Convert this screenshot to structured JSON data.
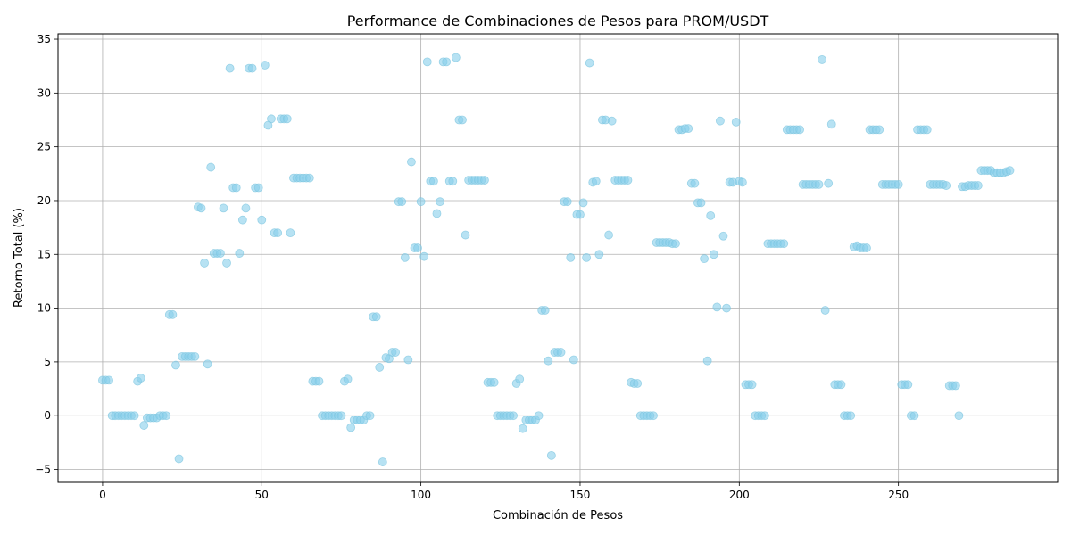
{
  "chart_data": {
    "type": "scatter",
    "title": "Performance de Combinaciones de Pesos para PROM/USDT",
    "xlabel": "Combinación de Pesos",
    "ylabel": "Retorno Total (%)",
    "xlim": [
      -14,
      300
    ],
    "ylim": [
      -6.2,
      35.5
    ],
    "xticks": [
      0,
      50,
      100,
      150,
      200,
      250
    ],
    "yticks": [
      -5,
      0,
      5,
      10,
      15,
      20,
      25,
      30,
      35
    ],
    "grid": true,
    "marker_color": "#87ceeb",
    "marker_edge": "#7fc6e0",
    "series": [
      {
        "points": [
          [
            0,
            3.3
          ],
          [
            1,
            3.3
          ],
          [
            2,
            3.3
          ],
          [
            3,
            0
          ],
          [
            4,
            0
          ],
          [
            5,
            0
          ],
          [
            6,
            0
          ],
          [
            7,
            0
          ],
          [
            8,
            0
          ],
          [
            9,
            0
          ],
          [
            10,
            0
          ],
          [
            11,
            3.2
          ],
          [
            12,
            3.5
          ],
          [
            13,
            -0.9
          ],
          [
            14,
            -0.2
          ],
          [
            15,
            -0.2
          ],
          [
            16,
            -0.2
          ],
          [
            17,
            -0.2
          ],
          [
            18,
            0
          ],
          [
            19,
            0
          ],
          [
            20,
            0
          ],
          [
            21,
            9.4
          ],
          [
            22,
            9.4
          ],
          [
            23,
            4.7
          ],
          [
            24,
            -4.0
          ],
          [
            25,
            5.5
          ],
          [
            26,
            5.5
          ],
          [
            27,
            5.5
          ],
          [
            28,
            5.5
          ],
          [
            29,
            5.5
          ],
          [
            30,
            19.4
          ],
          [
            31,
            19.3
          ],
          [
            32,
            14.2
          ],
          [
            33,
            4.8
          ],
          [
            34,
            23.1
          ],
          [
            35,
            15.1
          ],
          [
            36,
            15.1
          ],
          [
            37,
            15.1
          ],
          [
            38,
            19.3
          ],
          [
            39,
            14.2
          ],
          [
            40,
            32.3
          ],
          [
            41,
            21.2
          ],
          [
            42,
            21.2
          ],
          [
            43,
            15.1
          ],
          [
            44,
            18.2
          ],
          [
            45,
            19.3
          ],
          [
            46,
            32.3
          ],
          [
            47,
            32.3
          ],
          [
            48,
            21.2
          ],
          [
            49,
            21.2
          ],
          [
            50,
            18.2
          ],
          [
            51,
            32.6
          ],
          [
            52,
            27.0
          ],
          [
            53,
            27.6
          ],
          [
            54,
            17.0
          ],
          [
            55,
            17.0
          ],
          [
            56,
            27.6
          ],
          [
            57,
            27.6
          ],
          [
            58,
            27.6
          ],
          [
            59,
            17.0
          ],
          [
            60,
            22.1
          ],
          [
            61,
            22.1
          ],
          [
            62,
            22.1
          ],
          [
            63,
            22.1
          ],
          [
            64,
            22.1
          ],
          [
            65,
            22.1
          ],
          [
            66,
            3.2
          ],
          [
            67,
            3.2
          ],
          [
            68,
            3.2
          ],
          [
            69,
            0
          ],
          [
            70,
            0
          ],
          [
            71,
            0
          ],
          [
            72,
            0
          ],
          [
            73,
            0
          ],
          [
            74,
            0
          ],
          [
            75,
            0
          ],
          [
            76,
            3.2
          ],
          [
            77,
            3.4
          ],
          [
            78,
            -1.1
          ],
          [
            79,
            -0.4
          ],
          [
            80,
            -0.4
          ],
          [
            81,
            -0.4
          ],
          [
            82,
            -0.4
          ],
          [
            83,
            0
          ],
          [
            84,
            0
          ],
          [
            85,
            9.2
          ],
          [
            86,
            9.2
          ],
          [
            87,
            4.5
          ],
          [
            88,
            -4.3
          ],
          [
            89,
            5.4
          ],
          [
            90,
            5.3
          ],
          [
            91,
            5.9
          ],
          [
            92,
            5.9
          ],
          [
            93,
            19.9
          ],
          [
            94,
            19.9
          ],
          [
            95,
            14.7
          ],
          [
            96,
            5.2
          ],
          [
            97,
            23.6
          ],
          [
            98,
            15.6
          ],
          [
            99,
            15.6
          ],
          [
            100,
            19.9
          ],
          [
            101,
            14.8
          ],
          [
            102,
            32.9
          ],
          [
            103,
            21.8
          ],
          [
            104,
            21.8
          ],
          [
            105,
            18.8
          ],
          [
            106,
            19.9
          ],
          [
            107,
            32.9
          ],
          [
            108,
            32.9
          ],
          [
            109,
            21.8
          ],
          [
            110,
            21.8
          ],
          [
            111,
            33.3
          ],
          [
            112,
            27.5
          ],
          [
            113,
            27.5
          ],
          [
            114,
            16.8
          ],
          [
            115,
            21.9
          ],
          [
            116,
            21.9
          ],
          [
            117,
            21.9
          ],
          [
            118,
            21.9
          ],
          [
            119,
            21.9
          ],
          [
            120,
            21.9
          ],
          [
            121,
            3.1
          ],
          [
            122,
            3.1
          ],
          [
            123,
            3.1
          ],
          [
            124,
            0
          ],
          [
            125,
            0
          ],
          [
            126,
            0
          ],
          [
            127,
            0
          ],
          [
            128,
            0
          ],
          [
            129,
            0
          ],
          [
            130,
            3.0
          ],
          [
            131,
            3.4
          ],
          [
            132,
            -1.2
          ],
          [
            133,
            -0.4
          ],
          [
            134,
            -0.4
          ],
          [
            135,
            -0.4
          ],
          [
            136,
            -0.4
          ],
          [
            137,
            0
          ],
          [
            138,
            9.8
          ],
          [
            139,
            9.8
          ],
          [
            140,
            5.1
          ],
          [
            141,
            -3.7
          ],
          [
            142,
            5.9
          ],
          [
            143,
            5.9
          ],
          [
            144,
            5.9
          ],
          [
            145,
            19.9
          ],
          [
            146,
            19.9
          ],
          [
            147,
            14.7
          ],
          [
            148,
            5.2
          ],
          [
            149,
            18.7
          ],
          [
            150,
            18.7
          ],
          [
            151,
            19.8
          ],
          [
            152,
            14.7
          ],
          [
            153,
            32.8
          ],
          [
            154,
            21.7
          ],
          [
            155,
            21.8
          ],
          [
            156,
            15.0
          ],
          [
            157,
            27.5
          ],
          [
            158,
            27.5
          ],
          [
            159,
            16.8
          ],
          [
            160,
            27.4
          ],
          [
            161,
            21.9
          ],
          [
            162,
            21.9
          ],
          [
            163,
            21.9
          ],
          [
            164,
            21.9
          ],
          [
            165,
            21.9
          ],
          [
            166,
            3.1
          ],
          [
            167,
            3.0
          ],
          [
            168,
            3.0
          ],
          [
            169,
            0
          ],
          [
            170,
            0
          ],
          [
            171,
            0
          ],
          [
            172,
            0
          ],
          [
            173,
            0
          ],
          [
            174,
            16.1
          ],
          [
            175,
            16.1
          ],
          [
            176,
            16.1
          ],
          [
            177,
            16.1
          ],
          [
            178,
            16.1
          ],
          [
            179,
            16.0
          ],
          [
            180,
            16.0
          ],
          [
            181,
            26.6
          ],
          [
            182,
            26.6
          ],
          [
            183,
            26.7
          ],
          [
            184,
            26.7
          ],
          [
            185,
            21.6
          ],
          [
            186,
            21.6
          ],
          [
            187,
            19.8
          ],
          [
            188,
            19.8
          ],
          [
            189,
            14.6
          ],
          [
            190,
            5.1
          ],
          [
            191,
            18.6
          ],
          [
            192,
            15.0
          ],
          [
            193,
            10.1
          ],
          [
            194,
            27.4
          ],
          [
            195,
            16.7
          ],
          [
            196,
            10.0
          ],
          [
            197,
            21.7
          ],
          [
            198,
            21.7
          ],
          [
            199,
            27.3
          ],
          [
            200,
            21.8
          ],
          [
            201,
            21.7
          ],
          [
            202,
            2.9
          ],
          [
            203,
            2.9
          ],
          [
            204,
            2.9
          ],
          [
            205,
            0
          ],
          [
            206,
            0
          ],
          [
            207,
            0
          ],
          [
            208,
            0
          ],
          [
            209,
            16.0
          ],
          [
            210,
            16.0
          ],
          [
            211,
            16.0
          ],
          [
            212,
            16.0
          ],
          [
            213,
            16.0
          ],
          [
            214,
            16.0
          ],
          [
            215,
            26.6
          ],
          [
            216,
            26.6
          ],
          [
            217,
            26.6
          ],
          [
            218,
            26.6
          ],
          [
            219,
            26.6
          ],
          [
            220,
            21.5
          ],
          [
            221,
            21.5
          ],
          [
            222,
            21.5
          ],
          [
            223,
            21.5
          ],
          [
            224,
            21.5
          ],
          [
            225,
            21.5
          ],
          [
            226,
            33.1
          ],
          [
            227,
            9.8
          ],
          [
            228,
            21.6
          ],
          [
            229,
            27.1
          ],
          [
            230,
            2.9
          ],
          [
            231,
            2.9
          ],
          [
            232,
            2.9
          ],
          [
            233,
            0
          ],
          [
            234,
            0
          ],
          [
            235,
            0
          ],
          [
            236,
            15.7
          ],
          [
            237,
            15.8
          ],
          [
            238,
            15.6
          ],
          [
            239,
            15.6
          ],
          [
            240,
            15.6
          ],
          [
            241,
            26.6
          ],
          [
            242,
            26.6
          ],
          [
            243,
            26.6
          ],
          [
            244,
            26.6
          ],
          [
            245,
            21.5
          ],
          [
            246,
            21.5
          ],
          [
            247,
            21.5
          ],
          [
            248,
            21.5
          ],
          [
            249,
            21.5
          ],
          [
            250,
            21.5
          ],
          [
            251,
            2.9
          ],
          [
            252,
            2.9
          ],
          [
            253,
            2.9
          ],
          [
            254,
            0
          ],
          [
            255,
            0
          ],
          [
            256,
            26.6
          ],
          [
            257,
            26.6
          ],
          [
            258,
            26.6
          ],
          [
            259,
            26.6
          ],
          [
            260,
            21.5
          ],
          [
            261,
            21.5
          ],
          [
            262,
            21.5
          ],
          [
            263,
            21.5
          ],
          [
            264,
            21.5
          ],
          [
            265,
            21.4
          ],
          [
            266,
            2.8
          ],
          [
            267,
            2.8
          ],
          [
            268,
            2.8
          ],
          [
            269,
            0
          ],
          [
            270,
            21.3
          ],
          [
            271,
            21.3
          ],
          [
            272,
            21.4
          ],
          [
            273,
            21.4
          ],
          [
            274,
            21.4
          ],
          [
            275,
            21.4
          ],
          [
            276,
            22.8
          ],
          [
            277,
            22.8
          ],
          [
            278,
            22.8
          ],
          [
            279,
            22.8
          ],
          [
            280,
            22.6
          ],
          [
            281,
            22.6
          ],
          [
            282,
            22.6
          ],
          [
            283,
            22.6
          ],
          [
            284,
            22.7
          ],
          [
            285,
            22.8
          ]
        ]
      }
    ]
  }
}
